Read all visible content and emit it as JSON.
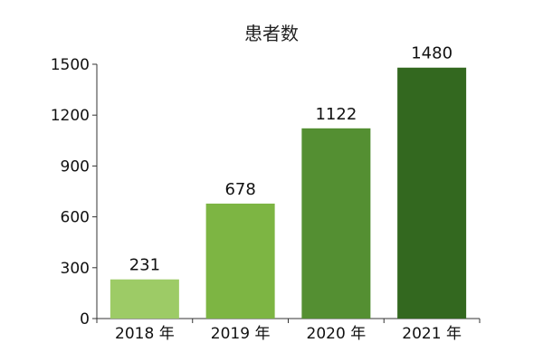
{
  "chart_data": {
    "type": "bar",
    "title": "患者数",
    "xlabel": "",
    "ylabel": "",
    "categories": [
      "2018 年",
      "2019 年",
      "2020 年",
      "2021 年"
    ],
    "values": [
      231,
      678,
      1122,
      1480
    ],
    "data_labels": [
      "231",
      "678",
      "1122",
      "1480"
    ],
    "ylim": [
      0,
      1500
    ],
    "yticks": [
      0,
      300,
      600,
      900,
      1200,
      1500
    ],
    "ytick_labels": [
      "0",
      "300",
      "600",
      "900",
      "1200",
      "1500"
    ],
    "grid": false,
    "legend": "none",
    "colors": [
      "#9dcb66",
      "#7db543",
      "#548f32",
      "#33681f"
    ]
  }
}
